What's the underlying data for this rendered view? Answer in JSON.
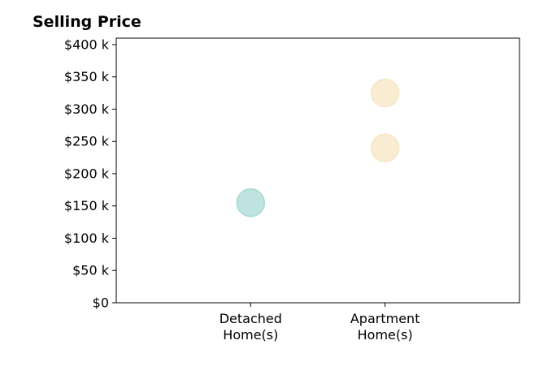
{
  "chart_data": {
    "type": "scatter",
    "title": "Selling Price",
    "xlabel": "",
    "ylabel": "",
    "categories": [
      [
        "Detached",
        "Home(s)"
      ],
      [
        "Apartment",
        "Home(s)"
      ]
    ],
    "y_tick_labels": [
      "$0",
      "$50 k",
      "$100 k",
      "$150 k",
      "$200 k",
      "$250 k",
      "$300 k",
      "$350 k",
      "$400 k"
    ],
    "y_ticks": [
      0,
      50000,
      100000,
      150000,
      200000,
      250000,
      300000,
      350000,
      400000
    ],
    "ylim": [
      0,
      410000
    ],
    "x_range": [
      -1,
      2
    ],
    "grid": false,
    "points": [
      {
        "category": "Detached Home(s)",
        "value": 155000,
        "color": "#a8dad6"
      },
      {
        "category": "Apartment Home(s)",
        "value": 240000,
        "color": "#f5e6c4"
      },
      {
        "category": "Apartment Home(s)",
        "value": 325000,
        "color": "#f5e6c4"
      }
    ]
  }
}
